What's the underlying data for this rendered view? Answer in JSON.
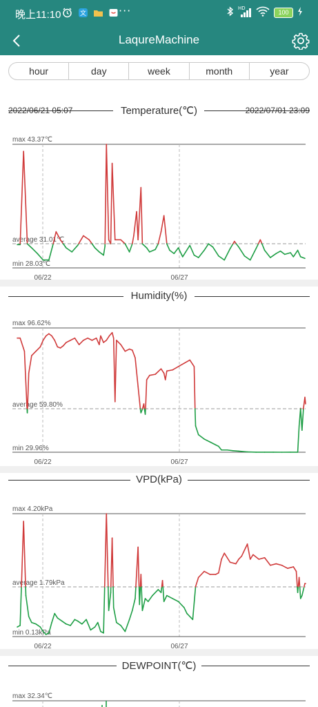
{
  "status_bar": {
    "time": "晚上11:10",
    "battery": "100",
    "icons": [
      "alarm-icon",
      "translate-icon",
      "folder-icon",
      "shop-icon",
      "bluetooth-icon",
      "cellular-signal-icon",
      "wifi-icon",
      "charging-icon"
    ],
    "hd_label": "HD"
  },
  "header": {
    "title": "LaqureMachine",
    "back_icon": "chevron-left-icon",
    "settings_icon": "gear-icon",
    "bg_color": "#26877f"
  },
  "tabs": [
    {
      "label": "hour"
    },
    {
      "label": "day"
    },
    {
      "label": "week"
    },
    {
      "label": "month"
    },
    {
      "label": "year"
    }
  ],
  "date_range": {
    "start": "2022/06/21 05:07",
    "end": "2022/07/01 23:09"
  },
  "colors": {
    "above_avg": "#d03a3a",
    "below_avg": "#1e9e45",
    "grid": "#555555",
    "dashed": "#999999"
  },
  "charts": [
    {
      "title": "Temperature(℃)",
      "max_label": "max 43.37℃",
      "avg_label": "average 31.01℃",
      "min_label": "min 28.03℃",
      "max": 43.37,
      "avg": 31.01,
      "min": 28.03,
      "x_ticks": [
        "06/22",
        "06/27"
      ],
      "points": [
        [
          0,
          30.9
        ],
        [
          0.01,
          30.9
        ],
        [
          0.022,
          42.5
        ],
        [
          0.035,
          31
        ],
        [
          0.05,
          30.5
        ],
        [
          0.07,
          29.8
        ],
        [
          0.09,
          29
        ],
        [
          0.11,
          29
        ],
        [
          0.125,
          31
        ],
        [
          0.135,
          32.5
        ],
        [
          0.15,
          31.5
        ],
        [
          0.17,
          30.5
        ],
        [
          0.19,
          30
        ],
        [
          0.21,
          30.8
        ],
        [
          0.23,
          32
        ],
        [
          0.25,
          31.5
        ],
        [
          0.27,
          30.5
        ],
        [
          0.285,
          30
        ],
        [
          0.3,
          29.6
        ],
        [
          0.305,
          30.7
        ],
        [
          0.31,
          43.37
        ],
        [
          0.318,
          31.5
        ],
        [
          0.325,
          31
        ],
        [
          0.33,
          41
        ],
        [
          0.34,
          31.5
        ],
        [
          0.36,
          31.5
        ],
        [
          0.375,
          31
        ],
        [
          0.39,
          30
        ],
        [
          0.4,
          31
        ],
        [
          0.405,
          32
        ],
        [
          0.415,
          35
        ],
        [
          0.42,
          31.5
        ],
        [
          0.43,
          38
        ],
        [
          0.435,
          31
        ],
        [
          0.45,
          30.5
        ],
        [
          0.46,
          30
        ],
        [
          0.48,
          30.3
        ],
        [
          0.49,
          31
        ],
        [
          0.5,
          32.5
        ],
        [
          0.51,
          34.5
        ],
        [
          0.52,
          31
        ],
        [
          0.53,
          30.2
        ],
        [
          0.545,
          29.8
        ],
        [
          0.56,
          30.5
        ],
        [
          0.575,
          29.4
        ],
        [
          0.6,
          30.8
        ],
        [
          0.615,
          29.6
        ],
        [
          0.63,
          29.3
        ],
        [
          0.65,
          30.2
        ],
        [
          0.665,
          31
        ],
        [
          0.68,
          30.6
        ],
        [
          0.7,
          29.5
        ],
        [
          0.72,
          29
        ],
        [
          0.74,
          30.4
        ],
        [
          0.755,
          31.3
        ],
        [
          0.77,
          30.6
        ],
        [
          0.79,
          29.5
        ],
        [
          0.81,
          29
        ],
        [
          0.83,
          30.4
        ],
        [
          0.845,
          31.5
        ],
        [
          0.86,
          30.2
        ],
        [
          0.88,
          29.3
        ],
        [
          0.9,
          29.8
        ],
        [
          0.915,
          30.1
        ],
        [
          0.93,
          29.7
        ],
        [
          0.95,
          29.9
        ],
        [
          0.96,
          29.4
        ],
        [
          0.975,
          30.2
        ],
        [
          0.985,
          29.4
        ],
        [
          1.0,
          29.2
        ]
      ]
    },
    {
      "title": "Humidity(%)",
      "max_label": "max 96.62%",
      "avg_label": "average 59.80%",
      "min_label": "min 29.96%",
      "max": 96.62,
      "avg": 59.8,
      "min": 29.96,
      "x_ticks": [
        "06/22",
        "06/27"
      ],
      "points": [
        [
          0,
          92
        ],
        [
          0.01,
          92
        ],
        [
          0.025,
          86
        ],
        [
          0.035,
          57
        ],
        [
          0.04,
          76
        ],
        [
          0.05,
          84
        ],
        [
          0.065,
          86
        ],
        [
          0.08,
          88
        ],
        [
          0.09,
          91
        ],
        [
          0.1,
          93
        ],
        [
          0.11,
          94
        ],
        [
          0.12,
          93
        ],
        [
          0.13,
          91
        ],
        [
          0.14,
          88
        ],
        [
          0.15,
          87.5
        ],
        [
          0.16,
          88.5
        ],
        [
          0.17,
          90
        ],
        [
          0.185,
          91
        ],
        [
          0.2,
          92
        ],
        [
          0.215,
          89
        ],
        [
          0.23,
          91
        ],
        [
          0.245,
          92
        ],
        [
          0.26,
          91
        ],
        [
          0.275,
          92
        ],
        [
          0.285,
          89
        ],
        [
          0.29,
          93
        ],
        [
          0.3,
          90
        ],
        [
          0.31,
          91
        ],
        [
          0.32,
          93
        ],
        [
          0.33,
          94.5
        ],
        [
          0.335,
          92
        ],
        [
          0.34,
          63
        ],
        [
          0.345,
          91
        ],
        [
          0.36,
          89
        ],
        [
          0.375,
          86
        ],
        [
          0.39,
          87
        ],
        [
          0.4,
          86.5
        ],
        [
          0.41,
          83
        ],
        [
          0.42,
          70
        ],
        [
          0.43,
          57
        ],
        [
          0.44,
          62
        ],
        [
          0.445,
          56
        ],
        [
          0.45,
          73
        ],
        [
          0.46,
          75
        ],
        [
          0.48,
          75.5
        ],
        [
          0.5,
          78
        ],
        [
          0.51,
          76
        ],
        [
          0.515,
          73
        ],
        [
          0.52,
          77
        ],
        [
          0.54,
          77.5
        ],
        [
          0.56,
          79
        ],
        [
          0.58,
          80.5
        ],
        [
          0.6,
          82
        ],
        [
          0.615,
          79
        ],
        [
          0.62,
          48
        ],
        [
          0.63,
          42
        ],
        [
          0.65,
          39
        ],
        [
          0.67,
          37
        ],
        [
          0.69,
          35
        ],
        [
          0.7,
          34
        ],
        [
          0.71,
          31.5
        ],
        [
          0.73,
          31.5
        ],
        [
          0.75,
          31
        ],
        [
          0.77,
          30.7
        ],
        [
          0.8,
          30.2
        ],
        [
          0.83,
          30
        ],
        [
          0.86,
          30
        ],
        [
          0.89,
          30
        ],
        [
          0.92,
          29.96
        ],
        [
          0.95,
          30
        ],
        [
          0.975,
          30
        ],
        [
          0.98,
          48
        ],
        [
          0.985,
          60
        ],
        [
          0.99,
          45
        ],
        [
          0.995,
          60
        ],
        [
          1.0,
          65
        ],
        [
          1.02,
          62
        ]
      ]
    },
    {
      "title": "VPD(kPa)",
      "max_label": "max 4.20kPa",
      "avg_label": "average 1.79kPa",
      "min_label": "min 0.13kPa",
      "max": 4.2,
      "avg": 1.79,
      "min": 0.13,
      "x_ticks": [
        "06/22",
        "06/27"
      ],
      "points": [
        [
          0,
          0.45
        ],
        [
          0.01,
          0.5
        ],
        [
          0.022,
          3.95
        ],
        [
          0.03,
          1.5
        ],
        [
          0.04,
          0.8
        ],
        [
          0.05,
          0.6
        ],
        [
          0.065,
          0.55
        ],
        [
          0.08,
          0.45
        ],
        [
          0.09,
          0.3
        ],
        [
          0.1,
          0.2
        ],
        [
          0.11,
          0.25
        ],
        [
          0.12,
          0.6
        ],
        [
          0.13,
          0.9
        ],
        [
          0.14,
          0.75
        ],
        [
          0.155,
          0.65
        ],
        [
          0.17,
          0.55
        ],
        [
          0.185,
          0.5
        ],
        [
          0.2,
          0.7
        ],
        [
          0.21,
          0.65
        ],
        [
          0.225,
          0.55
        ],
        [
          0.24,
          0.7
        ],
        [
          0.255,
          0.35
        ],
        [
          0.27,
          0.45
        ],
        [
          0.28,
          0.6
        ],
        [
          0.29,
          0.3
        ],
        [
          0.3,
          0.25
        ],
        [
          0.31,
          4.2
        ],
        [
          0.318,
          1.0
        ],
        [
          0.325,
          1.6
        ],
        [
          0.33,
          3.4
        ],
        [
          0.335,
          1.1
        ],
        [
          0.345,
          0.6
        ],
        [
          0.36,
          0.5
        ],
        [
          0.375,
          0.3
        ],
        [
          0.39,
          0.7
        ],
        [
          0.4,
          1.0
        ],
        [
          0.41,
          1.4
        ],
        [
          0.42,
          3.1
        ],
        [
          0.425,
          1.2
        ],
        [
          0.43,
          2.2
        ],
        [
          0.435,
          1.0
        ],
        [
          0.445,
          1.4
        ],
        [
          0.455,
          1.3
        ],
        [
          0.47,
          1.5
        ],
        [
          0.49,
          1.7
        ],
        [
          0.5,
          1.6
        ],
        [
          0.505,
          2.0
        ],
        [
          0.51,
          1.3
        ],
        [
          0.52,
          1.5
        ],
        [
          0.54,
          1.4
        ],
        [
          0.56,
          1.3
        ],
        [
          0.58,
          1.1
        ],
        [
          0.59,
          0.9
        ],
        [
          0.6,
          0.8
        ],
        [
          0.61,
          0.7
        ],
        [
          0.62,
          1.8
        ],
        [
          0.63,
          2.1
        ],
        [
          0.65,
          2.3
        ],
        [
          0.67,
          2.2
        ],
        [
          0.69,
          2.2
        ],
        [
          0.7,
          2.25
        ],
        [
          0.71,
          2.7
        ],
        [
          0.72,
          2.9
        ],
        [
          0.74,
          2.6
        ],
        [
          0.76,
          2.55
        ],
        [
          0.77,
          2.7
        ],
        [
          0.78,
          2.8
        ],
        [
          0.79,
          3.0
        ],
        [
          0.8,
          3.2
        ],
        [
          0.81,
          2.7
        ],
        [
          0.82,
          2.85
        ],
        [
          0.84,
          2.7
        ],
        [
          0.86,
          2.75
        ],
        [
          0.88,
          2.5
        ],
        [
          0.9,
          2.55
        ],
        [
          0.92,
          2.5
        ],
        [
          0.94,
          2.4
        ],
        [
          0.96,
          2.45
        ],
        [
          0.97,
          2.3
        ],
        [
          0.975,
          1.6
        ],
        [
          0.98,
          2.1
        ],
        [
          0.985,
          1.4
        ],
        [
          0.99,
          1.5
        ],
        [
          1.0,
          1.9
        ],
        [
          1.02,
          1.9
        ]
      ]
    },
    {
      "title": "DEWPOINT(℃)",
      "max_label": "max 32.34℃",
      "x_ticks": []
    }
  ]
}
